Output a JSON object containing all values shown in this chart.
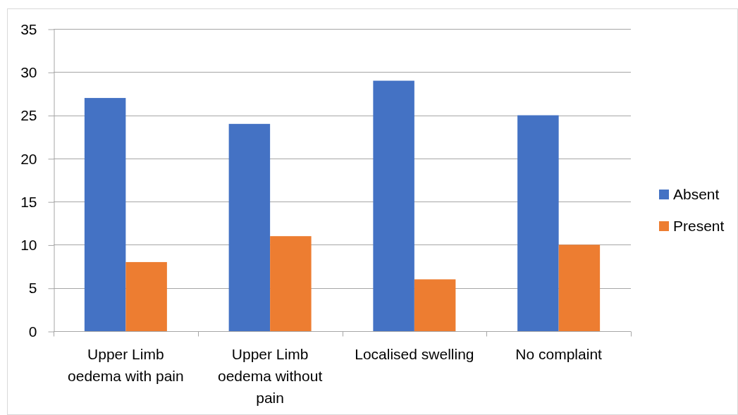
{
  "chart_data": {
    "type": "bar",
    "categories": [
      "Upper Limb oedema with pain",
      "Upper Limb oedema without pain",
      "Localised swelling",
      "No complaint"
    ],
    "series": [
      {
        "name": "Absent",
        "color": "#4472c4",
        "values": [
          27,
          24,
          29,
          25
        ]
      },
      {
        "name": "Present",
        "color": "#ed7d31",
        "values": [
          8,
          11,
          6,
          10
        ]
      }
    ],
    "ylim": [
      0,
      35
    ],
    "yticks": [
      0,
      5,
      10,
      15,
      20,
      25,
      30,
      35
    ],
    "grid": "y",
    "legend": "right"
  }
}
